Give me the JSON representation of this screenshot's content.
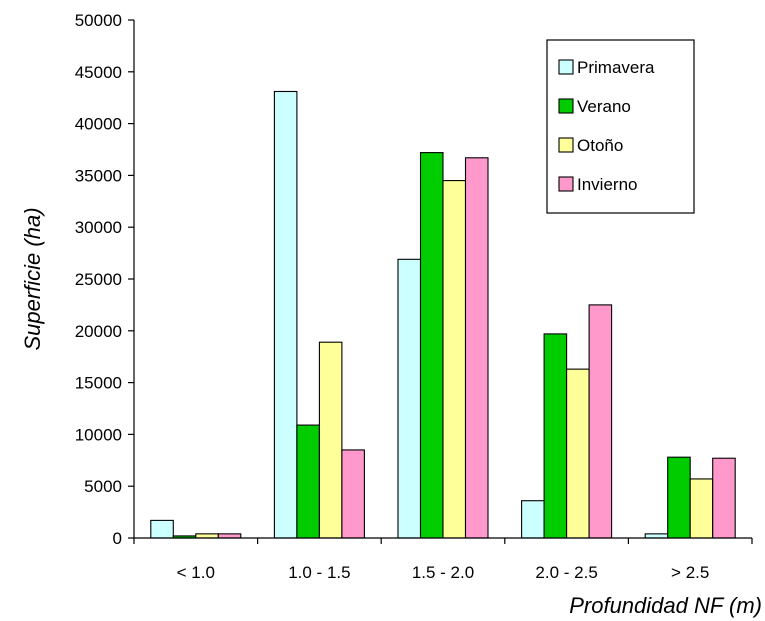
{
  "chart_data": {
    "type": "bar",
    "categories": [
      "< 1.0",
      "1.0 - 1.5",
      "1.5 - 2.0",
      "2.0 - 2.5",
      "> 2.5"
    ],
    "series": [
      {
        "name": "Primavera",
        "color": "#ccffff",
        "values": [
          1700,
          43100,
          26900,
          3600,
          400
        ]
      },
      {
        "name": "Verano",
        "color": "#00cc00",
        "values": [
          200,
          10900,
          37200,
          19700,
          7800
        ]
      },
      {
        "name": "Otoño",
        "color": "#ffff99",
        "values": [
          400,
          18900,
          34500,
          16300,
          5700
        ]
      },
      {
        "name": "Invierno",
        "color": "#ff99cc",
        "values": [
          400,
          8500,
          36700,
          22500,
          7700
        ]
      }
    ],
    "xlabel": "Profundidad NF (m)",
    "ylabel": "Superficie (ha)",
    "ylim": [
      0,
      50000
    ],
    "yticks": [
      "0",
      "5000",
      "10000",
      "15000",
      "20000",
      "25000",
      "30000",
      "35000",
      "40000",
      "45000",
      "50000"
    ],
    "grid": false,
    "legend_position": "top-right"
  }
}
